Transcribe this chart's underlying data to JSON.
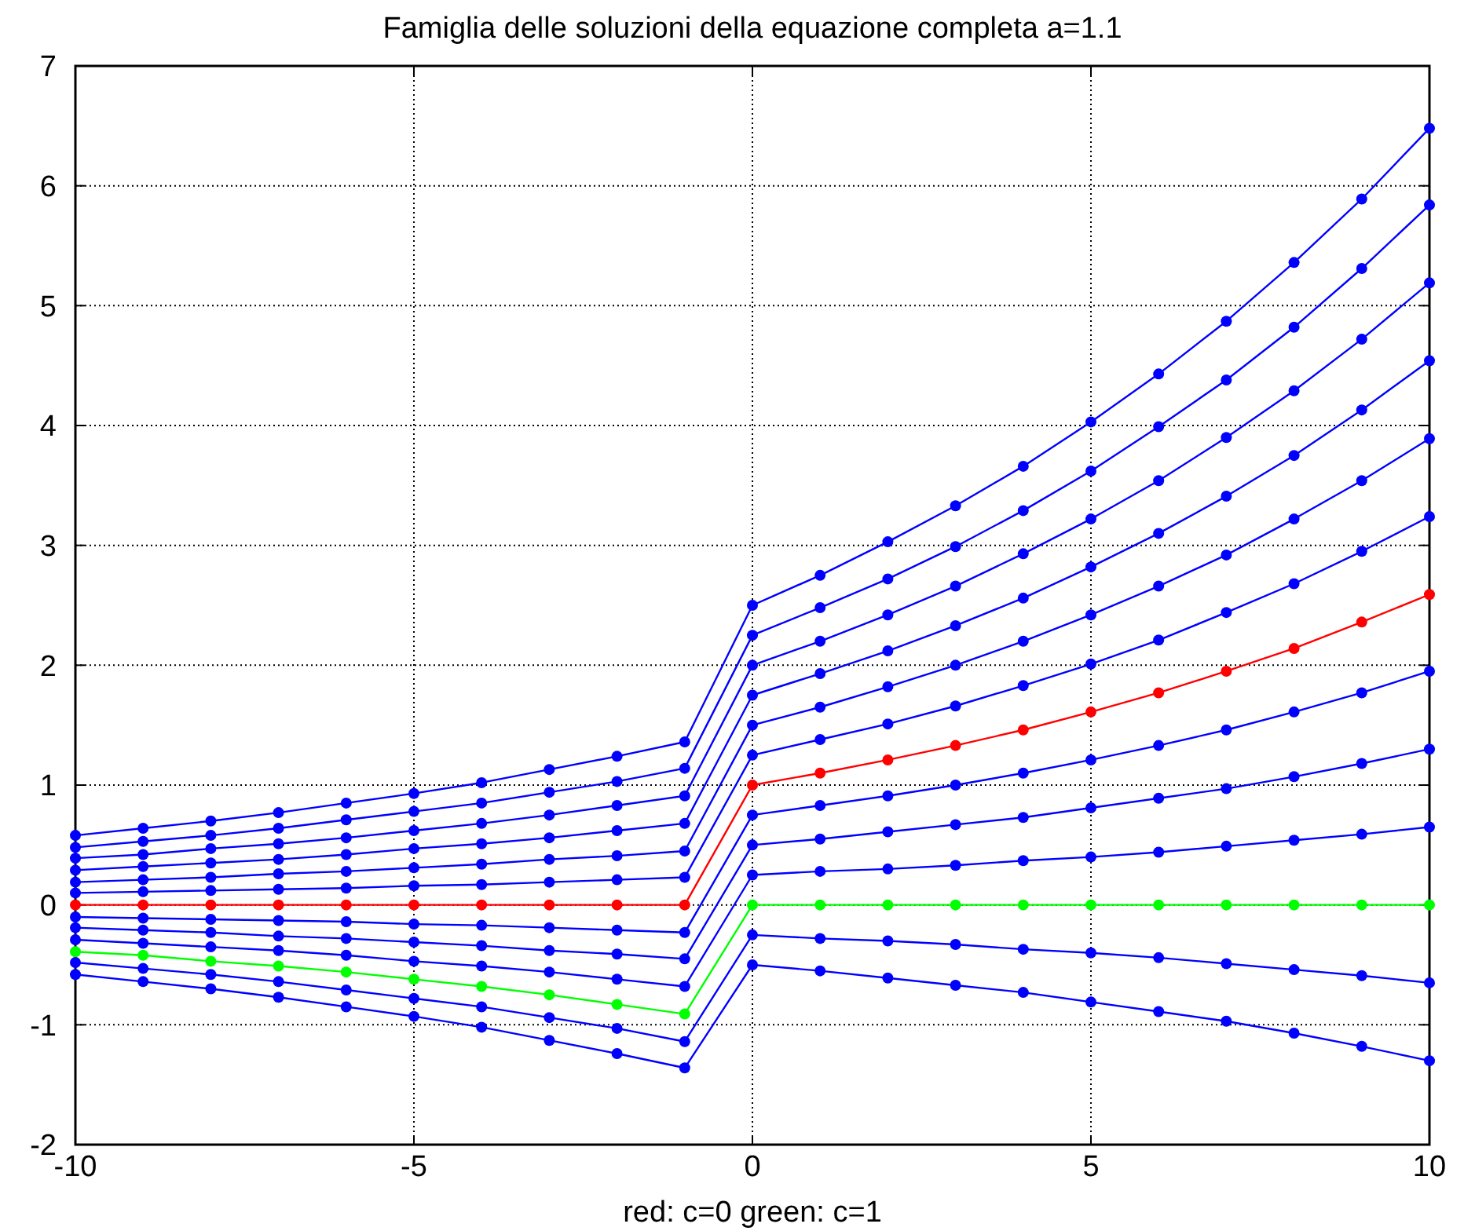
{
  "chart_data": {
    "type": "line",
    "title": "Famiglia delle soluzioni della equazione completa a=1.1",
    "xlabel": "red: c=0   green: c=1",
    "x": [
      -10,
      -9,
      -8,
      -7,
      -6,
      -5,
      -4,
      -3,
      -2,
      -1,
      0,
      1,
      2,
      3,
      4,
      5,
      6,
      7,
      8,
      9,
      10
    ],
    "series": [
      {
        "color": "#0000ff",
        "values": [
          0.58,
          0.64,
          0.7,
          0.77,
          0.85,
          0.93,
          1.02,
          1.13,
          1.24,
          1.36,
          2.5,
          2.75,
          3.03,
          3.33,
          3.66,
          4.03,
          4.43,
          4.87,
          5.36,
          5.89,
          6.48
        ]
      },
      {
        "color": "#0000ff",
        "values": [
          0.48,
          0.53,
          0.58,
          0.64,
          0.71,
          0.78,
          0.85,
          0.94,
          1.03,
          1.14,
          2.25,
          2.48,
          2.72,
          2.99,
          3.29,
          3.62,
          3.99,
          4.38,
          4.82,
          5.31,
          5.84
        ]
      },
      {
        "color": "#0000ff",
        "values": [
          0.39,
          0.42,
          0.47,
          0.51,
          0.56,
          0.62,
          0.68,
          0.75,
          0.83,
          0.91,
          2,
          2.2,
          2.42,
          2.66,
          2.93,
          3.22,
          3.54,
          3.9,
          4.29,
          4.72,
          5.19
        ]
      },
      {
        "color": "#0000ff",
        "values": [
          0.29,
          0.32,
          0.35,
          0.38,
          0.42,
          0.47,
          0.51,
          0.56,
          0.62,
          0.68,
          1.75,
          1.93,
          2.12,
          2.33,
          2.56,
          2.82,
          3.1,
          3.41,
          3.75,
          4.13,
          4.54
        ]
      },
      {
        "color": "#0000ff",
        "values": [
          0.19,
          0.21,
          0.23,
          0.26,
          0.28,
          0.31,
          0.34,
          0.38,
          0.41,
          0.45,
          1.5,
          1.65,
          1.82,
          2,
          2.2,
          2.42,
          2.66,
          2.92,
          3.22,
          3.54,
          3.89
        ]
      },
      {
        "color": "#0000ff",
        "values": [
          0.1,
          0.11,
          0.12,
          0.13,
          0.14,
          0.16,
          0.17,
          0.19,
          0.21,
          0.23,
          1.25,
          1.38,
          1.51,
          1.66,
          1.83,
          2.01,
          2.21,
          2.44,
          2.68,
          2.95,
          3.24
        ]
      },
      {
        "color": "#0000ff",
        "values": [
          -0.1,
          -0.11,
          -0.12,
          -0.13,
          -0.14,
          -0.16,
          -0.17,
          -0.19,
          -0.21,
          -0.23,
          0.75,
          0.83,
          0.91,
          1,
          1.1,
          1.21,
          1.33,
          1.46,
          1.61,
          1.77,
          1.95
        ]
      },
      {
        "color": "#0000ff",
        "values": [
          -0.19,
          -0.21,
          -0.23,
          -0.26,
          -0.28,
          -0.31,
          -0.34,
          -0.38,
          -0.41,
          -0.45,
          0.5,
          0.55,
          0.61,
          0.67,
          0.73,
          0.81,
          0.89,
          0.97,
          1.07,
          1.18,
          1.3
        ]
      },
      {
        "color": "#0000ff",
        "values": [
          -0.29,
          -0.32,
          -0.35,
          -0.38,
          -0.42,
          -0.47,
          -0.51,
          -0.56,
          -0.62,
          -0.68,
          0.25,
          0.28,
          0.3,
          0.33,
          0.37,
          0.4,
          0.44,
          0.49,
          0.54,
          0.59,
          0.65
        ]
      },
      {
        "color": "#0000ff",
        "values": [
          -0.48,
          -0.53,
          -0.58,
          -0.64,
          -0.71,
          -0.78,
          -0.85,
          -0.94,
          -1.03,
          -1.14,
          -0.25,
          -0.28,
          -0.3,
          -0.33,
          -0.37,
          -0.4,
          -0.44,
          -0.49,
          -0.54,
          -0.59,
          -0.65
        ]
      },
      {
        "color": "#0000ff",
        "values": [
          -0.58,
          -0.64,
          -0.7,
          -0.77,
          -0.85,
          -0.93,
          -1.02,
          -1.13,
          -1.24,
          -1.36,
          -0.5,
          -0.55,
          -0.61,
          -0.67,
          -0.73,
          -0.81,
          -0.89,
          -0.97,
          -1.07,
          -1.18,
          -1.3
        ]
      },
      {
        "color": "#ff0000",
        "values": [
          0,
          0,
          0,
          0,
          0,
          0,
          0,
          0,
          0,
          0,
          1,
          1.1,
          1.21,
          1.33,
          1.46,
          1.61,
          1.77,
          1.95,
          2.14,
          2.36,
          2.59
        ]
      },
      {
        "color": "#00ff00",
        "values": [
          -0.39,
          -0.42,
          -0.47,
          -0.51,
          -0.56,
          -0.62,
          -0.68,
          -0.75,
          -0.83,
          -0.91,
          0,
          0,
          0,
          0,
          0,
          0,
          0,
          0,
          0,
          0,
          0
        ]
      }
    ],
    "xlim": [
      -10,
      10
    ],
    "xticks": [
      -10,
      -5,
      0,
      5,
      10
    ],
    "ylim": [
      -2,
      7
    ],
    "yticks": [
      -2,
      -1,
      0,
      1,
      2,
      3,
      4,
      5,
      6,
      7
    ],
    "grid": true,
    "marker": "circle",
    "line_style": "solid"
  }
}
